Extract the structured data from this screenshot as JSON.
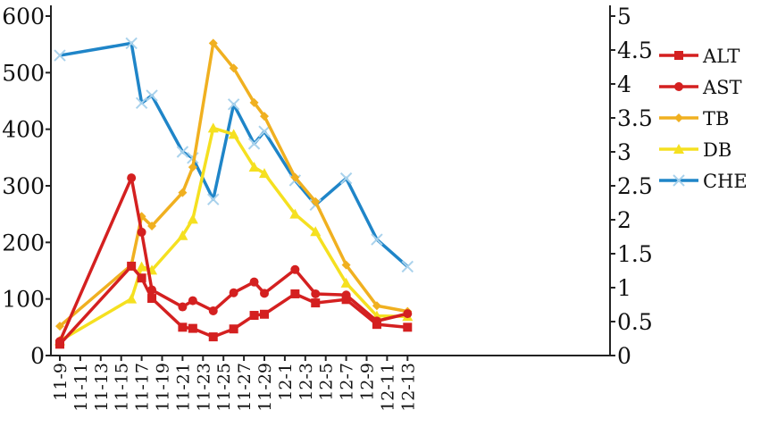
{
  "chart_data": {
    "type": "line",
    "title": "",
    "xlabel": "",
    "ylabel_left": "",
    "ylabel_right": "",
    "ylim_left": [
      0,
      600
    ],
    "ylim_right": [
      0,
      5
    ],
    "yticks_left": [
      "0",
      "100",
      "200",
      "300",
      "400",
      "500",
      "600"
    ],
    "yticks_right": [
      "0",
      "0.5",
      "1",
      "1.5",
      "2",
      "2.5",
      "3",
      "3.5",
      "4",
      "4.5",
      "5"
    ],
    "categories": [
      "11-9",
      "11-11",
      "11-13",
      "11-15",
      "11-17",
      "11-19",
      "11-21",
      "11-23",
      "11-25",
      "11-27",
      "11-29",
      "12-1",
      "12-3",
      "12-5",
      "12-7",
      "12-9",
      "12-11",
      "12-13"
    ],
    "legend_position": "right",
    "grid": false,
    "series": [
      {
        "name": "ALT",
        "axis": "left",
        "color": "#d42020",
        "marker": "square",
        "points": [
          {
            "x": "11-9",
            "y": 20
          },
          {
            "x": "11-16",
            "y": 158
          },
          {
            "x": "11-17",
            "y": 137
          },
          {
            "x": "11-18",
            "y": 101
          },
          {
            "x": "11-21",
            "y": 50
          },
          {
            "x": "11-22",
            "y": 48
          },
          {
            "x": "11-24",
            "y": 33
          },
          {
            "x": "11-26",
            "y": 47
          },
          {
            "x": "11-28",
            "y": 71
          },
          {
            "x": "11-29",
            "y": 73
          },
          {
            "x": "12-2",
            "y": 109
          },
          {
            "x": "12-4",
            "y": 93
          },
          {
            "x": "12-7",
            "y": 99
          },
          {
            "x": "12-10",
            "y": 55
          },
          {
            "x": "12-13",
            "y": 50
          }
        ]
      },
      {
        "name": "AST",
        "axis": "left",
        "color": "#d42020",
        "marker": "circle",
        "points": [
          {
            "x": "11-9",
            "y": 25
          },
          {
            "x": "11-16",
            "y": 314
          },
          {
            "x": "11-17",
            "y": 218
          },
          {
            "x": "11-18",
            "y": 116
          },
          {
            "x": "11-21",
            "y": 86
          },
          {
            "x": "11-22",
            "y": 97
          },
          {
            "x": "11-24",
            "y": 79
          },
          {
            "x": "11-26",
            "y": 111
          },
          {
            "x": "11-28",
            "y": 130
          },
          {
            "x": "11-29",
            "y": 110
          },
          {
            "x": "12-2",
            "y": 152
          },
          {
            "x": "12-4",
            "y": 109
          },
          {
            "x": "12-7",
            "y": 107
          },
          {
            "x": "12-10",
            "y": 61
          },
          {
            "x": "12-13",
            "y": 74
          }
        ]
      },
      {
        "name": "TB",
        "axis": "left",
        "color": "#f0b020",
        "marker": "diamond",
        "points": [
          {
            "x": "11-9",
            "y": 52
          },
          {
            "x": "11-16",
            "y": 160
          },
          {
            "x": "11-17",
            "y": 246
          },
          {
            "x": "11-18",
            "y": 229
          },
          {
            "x": "11-21",
            "y": 288
          },
          {
            "x": "11-22",
            "y": 333
          },
          {
            "x": "11-24",
            "y": 552
          },
          {
            "x": "11-26",
            "y": 508
          },
          {
            "x": "11-28",
            "y": 447
          },
          {
            "x": "11-29",
            "y": 423
          },
          {
            "x": "12-2",
            "y": 315
          },
          {
            "x": "12-4",
            "y": 272
          },
          {
            "x": "12-7",
            "y": 160
          },
          {
            "x": "12-10",
            "y": 88
          },
          {
            "x": "12-13",
            "y": 78
          }
        ]
      },
      {
        "name": "DB",
        "axis": "left",
        "color": "#f5e020",
        "marker": "triangle",
        "points": [
          {
            "x": "11-9",
            "y": 26
          },
          {
            "x": "11-16",
            "y": 100
          },
          {
            "x": "11-17",
            "y": 157
          },
          {
            "x": "11-18",
            "y": 151
          },
          {
            "x": "11-21",
            "y": 212
          },
          {
            "x": "11-22",
            "y": 241
          },
          {
            "x": "11-24",
            "y": 402
          },
          {
            "x": "11-26",
            "y": 391
          },
          {
            "x": "11-28",
            "y": 333
          },
          {
            "x": "11-29",
            "y": 322
          },
          {
            "x": "12-2",
            "y": 250
          },
          {
            "x": "12-4",
            "y": 219
          },
          {
            "x": "12-7",
            "y": 128
          },
          {
            "x": "12-10",
            "y": 70
          },
          {
            "x": "12-13",
            "y": 69
          }
        ]
      },
      {
        "name": "CHE",
        "axis": "right",
        "color": "#1f85c8",
        "marker": "x",
        "points": [
          {
            "x": "11-9",
            "y": 4.42
          },
          {
            "x": "11-16",
            "y": 4.6
          },
          {
            "x": "11-17",
            "y": 3.72
          },
          {
            "x": "11-18",
            "y": 3.83
          },
          {
            "x": "11-21",
            "y": 3.0
          },
          {
            "x": "11-22",
            "y": 2.91
          },
          {
            "x": "11-24",
            "y": 2.3
          },
          {
            "x": "11-26",
            "y": 3.7
          },
          {
            "x": "11-28",
            "y": 3.12
          },
          {
            "x": "11-29",
            "y": 3.3
          },
          {
            "x": "12-2",
            "y": 2.58
          },
          {
            "x": "12-4",
            "y": 2.22
          },
          {
            "x": "12-7",
            "y": 2.61
          },
          {
            "x": "12-10",
            "y": 1.71
          },
          {
            "x": "12-13",
            "y": 1.31
          }
        ]
      }
    ]
  }
}
